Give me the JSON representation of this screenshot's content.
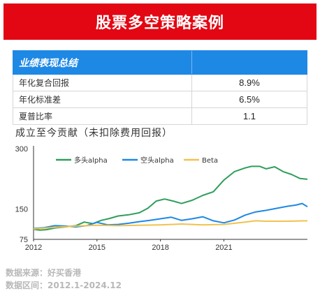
{
  "banner": {
    "title": "股票多空策略案例"
  },
  "summary_table": {
    "header": "业绩表现总结",
    "rows": [
      {
        "label": "年化复合回报",
        "value": "8.9%"
      },
      {
        "label": "年化标准差",
        "value": "6.5%"
      },
      {
        "label": "夏普比率",
        "value": "1.1"
      }
    ]
  },
  "chart_title": "成立至今贡献（未扣除费用回报）",
  "chart_data": {
    "type": "line",
    "x_range": [
      2012.0,
      2024.95
    ],
    "ylim": [
      75,
      300
    ],
    "yticks": [
      75,
      150,
      300
    ],
    "xticks": [
      "2012",
      "2015",
      "2018",
      "2021"
    ],
    "xtick_values": [
      2012,
      2015,
      2018,
      2021
    ],
    "legend_position": "top",
    "grid": false,
    "series": [
      {
        "name": "多头alpha",
        "color": "#2e9e5b",
        "x": [
          2012.0,
          2012.3,
          2012.6,
          2013.0,
          2013.5,
          2014.0,
          2014.4,
          2014.8,
          2015.2,
          2015.6,
          2016.0,
          2016.5,
          2017.0,
          2017.4,
          2017.8,
          2018.2,
          2018.6,
          2019.0,
          2019.5,
          2020.0,
          2020.5,
          2021.0,
          2021.5,
          2022.0,
          2022.3,
          2022.7,
          2023.0,
          2023.4,
          2023.8,
          2024.2,
          2024.6,
          2024.95
        ],
        "y": [
          100,
          98,
          99,
          103,
          106,
          109,
          118,
          114,
          122,
          127,
          133,
          136,
          141,
          152,
          170,
          175,
          170,
          164,
          172,
          184,
          193,
          222,
          243,
          252,
          256,
          256,
          250,
          255,
          243,
          236,
          226,
          224
        ]
      },
      {
        "name": "空头alpha",
        "color": "#1e88e5",
        "x": [
          2012.0,
          2012.5,
          2013.0,
          2013.5,
          2014.0,
          2014.5,
          2015.0,
          2015.5,
          2016.0,
          2016.5,
          2017.0,
          2017.5,
          2018.0,
          2018.5,
          2019.0,
          2019.5,
          2020.0,
          2020.5,
          2021.0,
          2021.5,
          2022.0,
          2022.5,
          2023.0,
          2023.5,
          2024.0,
          2024.4,
          2024.7,
          2024.95
        ],
        "y": [
          102,
          104,
          109,
          108,
          106,
          109,
          117,
          111,
          112,
          115,
          119,
          122,
          126,
          130,
          122,
          126,
          131,
          121,
          116,
          123,
          135,
          143,
          147,
          152,
          157,
          160,
          164,
          156
        ]
      },
      {
        "name": "Beta",
        "color": "#f2c14e",
        "x": [
          2012.0,
          2013.0,
          2014.0,
          2015.0,
          2016.0,
          2017.0,
          2018.0,
          2019.0,
          2020.0,
          2021.0,
          2022.0,
          2022.5,
          2023.0,
          2024.0,
          2024.95
        ],
        "y": [
          101,
          105,
          108,
          110,
          109,
          110,
          111,
          113,
          111,
          112,
          118,
          121,
          120,
          120,
          121
        ]
      }
    ]
  },
  "source": {
    "line1": "数据来源：好买香港",
    "line2": "数据区间：2012.1-2024.12"
  }
}
